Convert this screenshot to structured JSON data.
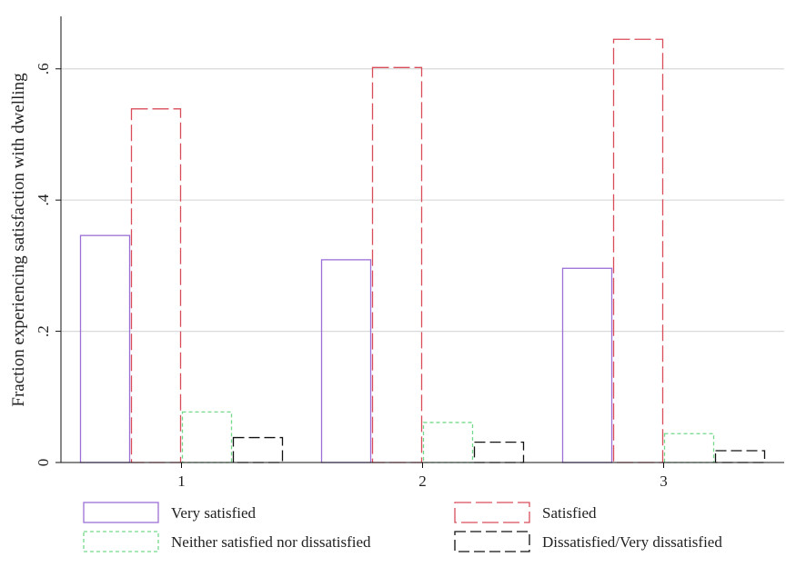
{
  "chart_data": {
    "type": "bar",
    "title": "",
    "xlabel": "",
    "ylabel": "Fraction experiencing satisfaction with dwelling",
    "categories": [
      "1",
      "2",
      "3"
    ],
    "ylim": [
      0,
      0.68
    ],
    "yticks": [
      0,
      0.2,
      0.4,
      0.6
    ],
    "ytick_labels": [
      "0",
      ".2",
      ".4",
      ".6"
    ],
    "grid": true,
    "legend_position": "bottom",
    "series": [
      {
        "name": "Very satisfied",
        "values": [
          0.346,
          0.309,
          0.296
        ],
        "color": "#9b6fd6",
        "dash": ""
      },
      {
        "name": "Satisfied",
        "values": [
          0.539,
          0.602,
          0.645
        ],
        "color": "#d94d5b",
        "dash": "18,5"
      },
      {
        "name": "Neither satisfied nor dissatisfied",
        "values": [
          0.077,
          0.061,
          0.044
        ],
        "color": "#74d98a",
        "dash": "4,3"
      },
      {
        "name": "Dissatisfied/Very dissatisfied",
        "values": [
          0.038,
          0.031,
          0.018
        ],
        "color": "#111111",
        "dash": "12,5"
      }
    ]
  }
}
